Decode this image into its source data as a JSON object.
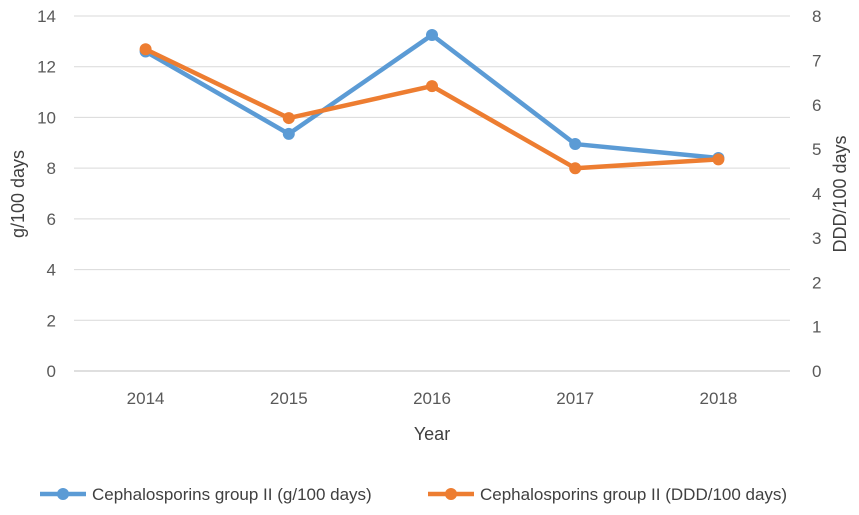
{
  "chart_data": {
    "type": "line",
    "categories": [
      "2014",
      "2015",
      "2016",
      "2017",
      "2018"
    ],
    "xlabel": "Year",
    "y_left": {
      "label": "g/100 days",
      "ylim": [
        0,
        14
      ],
      "ticks": [
        "0",
        "2",
        "4",
        "6",
        "8",
        "10",
        "12",
        "14"
      ]
    },
    "y_right": {
      "label": "DDD/100 days",
      "ylim": [
        0,
        8
      ],
      "ticks": [
        "0",
        "1",
        "2",
        "3",
        "4",
        "5",
        "6",
        "7",
        "8"
      ]
    },
    "grid": true,
    "legend_position": "bottom",
    "series": [
      {
        "name": "Cephalosporins group II (g/100 days)",
        "axis": "left",
        "color": "#5B9BD5",
        "values": [
          12.6,
          9.35,
          13.25,
          8.95,
          8.4
        ]
      },
      {
        "name": "Cephalosporins group II (DDD/100 days)",
        "axis": "right",
        "color": "#ED7D31",
        "values": [
          7.25,
          5.7,
          6.42,
          4.57,
          4.77
        ]
      }
    ]
  }
}
